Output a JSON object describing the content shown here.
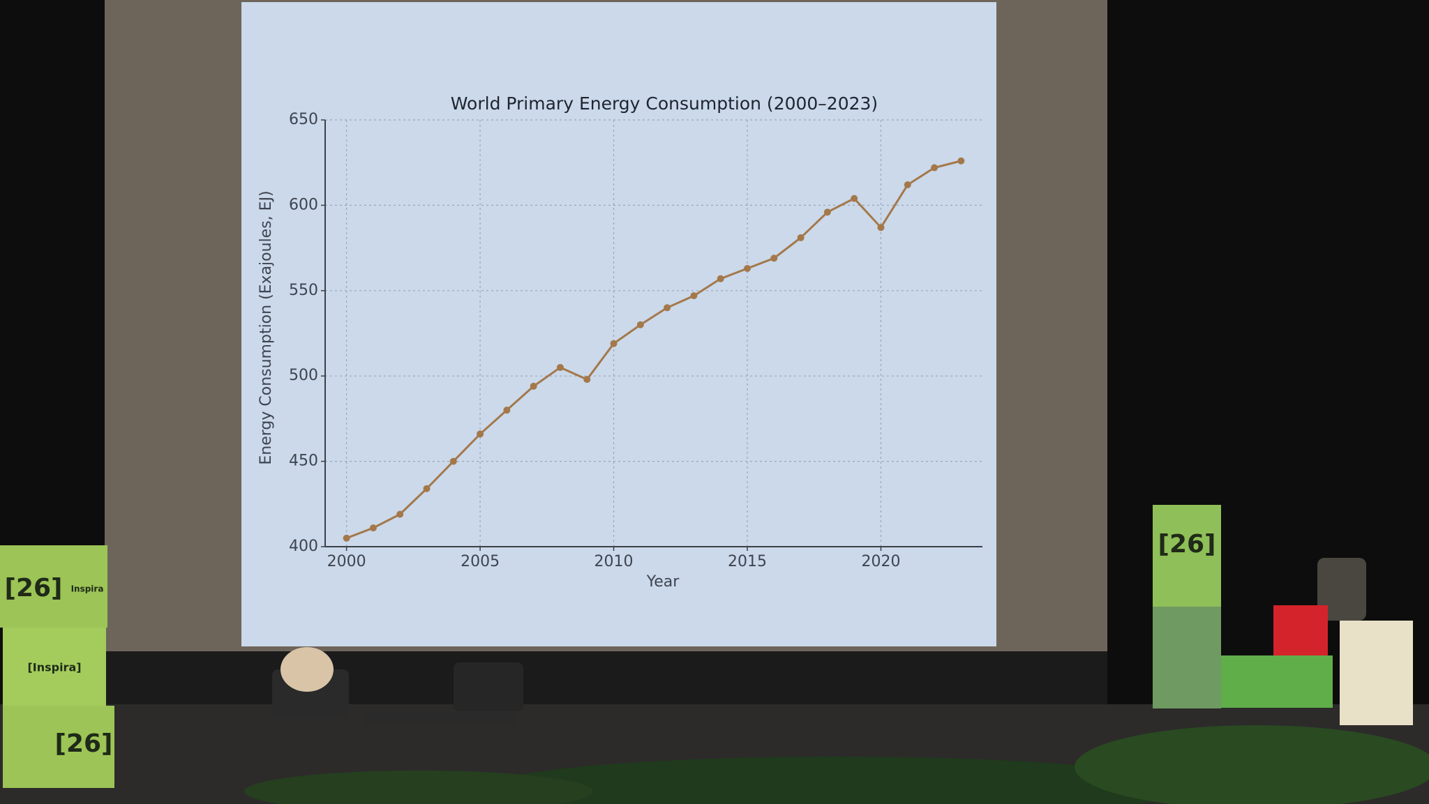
{
  "chart_data": {
    "type": "line",
    "title": "World Primary Energy Consumption (2000–2023)",
    "x_label": "Year",
    "y_label": "Energy Consumption (Exajoules, EJ)",
    "x": [
      2000,
      2001,
      2002,
      2003,
      2004,
      2005,
      2006,
      2007,
      2008,
      2009,
      2010,
      2011,
      2012,
      2013,
      2014,
      2015,
      2016,
      2017,
      2018,
      2019,
      2020,
      2021,
      2022,
      2023
    ],
    "series": [
      {
        "name": "World Primary Energy Consumption",
        "color": "#a4784a",
        "values": [
          405,
          411,
          419,
          434,
          450,
          466,
          480,
          494,
          505,
          498,
          519,
          530,
          540,
          547,
          557,
          563,
          569,
          581,
          596,
          604,
          587,
          612,
          622,
          626
        ]
      }
    ],
    "xlim": [
      1999.2,
      2023.8
    ],
    "ylim": [
      400,
      650
    ],
    "xticks": [
      2000,
      2005,
      2010,
      2015,
      2020
    ],
    "yticks": [
      400,
      450,
      500,
      550,
      600,
      650
    ],
    "grid": true
  },
  "signage": [
    "[26]",
    "Inspira",
    "[Inspira]",
    "[26]",
    "[26]"
  ]
}
